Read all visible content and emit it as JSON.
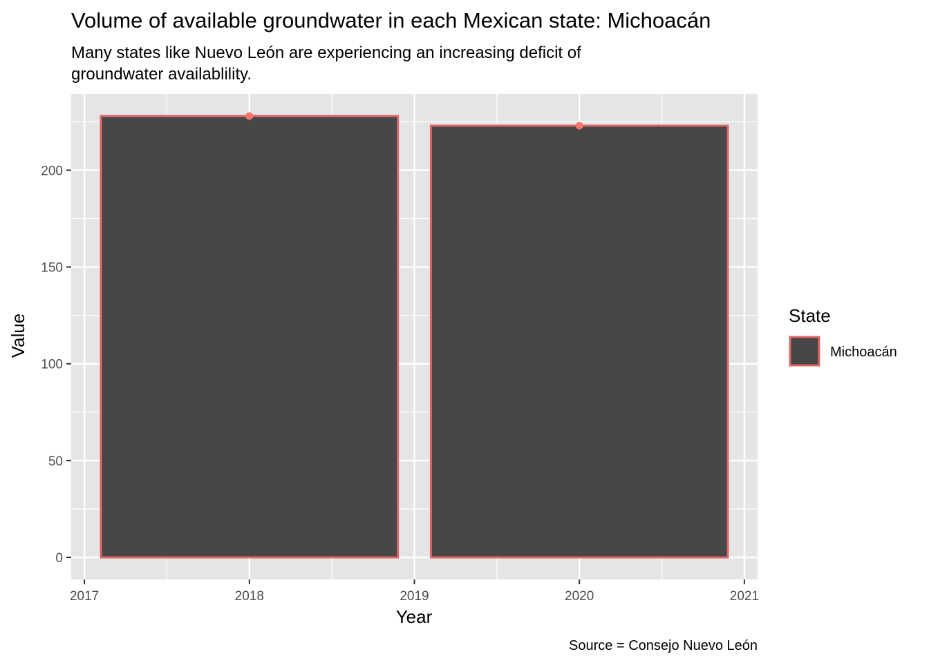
{
  "chart_data": {
    "type": "bar",
    "title": "Volume of available groundwater in each Mexican state: Michoacán",
    "subtitle_lines": [
      "Many states like Nuevo León are experiencing an increasing deficit of",
      "groundwater availablility."
    ],
    "xlabel": "Year",
    "ylabel": "Value",
    "caption": "Source = Consejo Nuevo León",
    "x_ticks": [
      2017,
      2018,
      2019,
      2020,
      2021
    ],
    "y_ticks": [
      0,
      50,
      100,
      150,
      200
    ],
    "xlim": [
      2016.92,
      2021.08
    ],
    "ylim": [
      -11.4,
      239.4
    ],
    "legend": {
      "title": "State",
      "placement": "right",
      "entries": [
        {
          "label": "Michoacán",
          "fill": "#474747",
          "outline": "#E06666"
        }
      ]
    },
    "series": [
      {
        "name": "Michoacán",
        "points": [
          {
            "x": 2018,
            "y": 228
          },
          {
            "x": 2020,
            "y": 223
          }
        ]
      }
    ],
    "bar_width_years": 1.8,
    "colors": {
      "panel": "#E5E5E5",
      "grid": "#FFFFFF",
      "bar_fill": "#474747",
      "bar_outline": "#E06666",
      "point": "#F8766D",
      "axis_text": "#4D4D4D",
      "tick": "#333333"
    },
    "grid": true
  }
}
